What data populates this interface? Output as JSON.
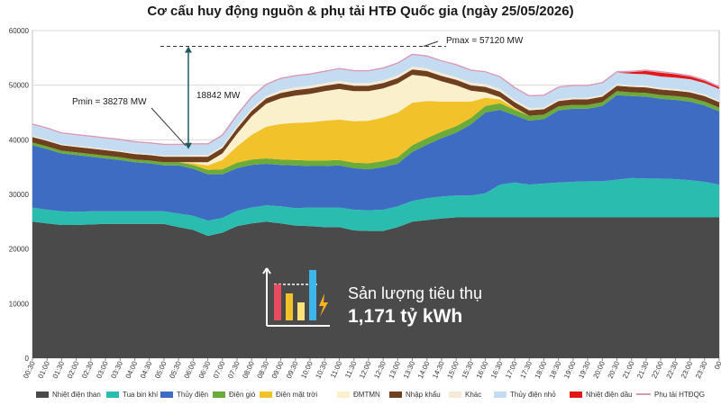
{
  "chart_data": {
    "type": "area",
    "title": "Cơ cấu huy động nguồn & phụ tải HTĐ Quốc gia (ngày 25/05/2026)",
    "ylim": [
      0,
      60000
    ],
    "yticks": [
      "0",
      "10000",
      "20000",
      "30000",
      "40000",
      "50000",
      "60000"
    ],
    "yticks_values": [
      0,
      10000,
      20000,
      30000,
      40000,
      50000,
      60000
    ],
    "x": [
      "00:30",
      "01:00",
      "01:30",
      "02:00",
      "02:30",
      "03:00",
      "03:30",
      "04:00",
      "04:30",
      "05:00",
      "05:30",
      "06:00",
      "06:30",
      "07:00",
      "07:30",
      "08:00",
      "08:30",
      "09:00",
      "09:30",
      "10:00",
      "10:30",
      "11:00",
      "11:30",
      "12:00",
      "12:30",
      "13:00",
      "13:30",
      "14:00",
      "14:30",
      "15:00",
      "15:30",
      "16:00",
      "16:30",
      "17:00",
      "17:30",
      "18:00",
      "18:30",
      "19:00",
      "19:30",
      "20:00",
      "20:30",
      "21:00",
      "21:30",
      "22:00",
      "22:30",
      "23:00",
      "23:30",
      "00"
    ],
    "grid": true,
    "legend_position": "bottom",
    "series": [
      {
        "name": "Nhiệt điện than",
        "color": "#4a4a4a",
        "values": [
          25000,
          24700,
          24400,
          24400,
          24500,
          24600,
          24600,
          24600,
          24600,
          24600,
          24000,
          23500,
          22400,
          23000,
          24200,
          24700,
          25000,
          24700,
          24300,
          24200,
          24000,
          24000,
          23400,
          23300,
          23300,
          24000,
          25000,
          25300,
          25600,
          25800,
          25800,
          25800,
          25800,
          25800,
          25800,
          25800,
          25800,
          25800,
          25800,
          25800,
          25800,
          25800,
          25800,
          25800,
          25800,
          25800,
          25800,
          25800
        ]
      },
      {
        "name": "Tua bin khí",
        "color": "#2bbcb0",
        "values": [
          2600,
          2500,
          2500,
          2400,
          2400,
          2300,
          2300,
          2300,
          2300,
          2300,
          2500,
          2600,
          2800,
          2700,
          2800,
          2900,
          3000,
          3100,
          3200,
          3400,
          3600,
          3600,
          3800,
          3800,
          3900,
          3800,
          3800,
          4000,
          4000,
          4000,
          4000,
          4400,
          6000,
          6400,
          6000,
          6200,
          6400,
          6500,
          6600,
          6600,
          6900,
          7200,
          7100,
          7100,
          7000,
          6800,
          6500,
          6000
        ]
      },
      {
        "name": "Thủy điện",
        "color": "#3e6cc2",
        "values": [
          11400,
          11100,
          10600,
          10400,
          10000,
          9700,
          9400,
          9000,
          8800,
          8400,
          8800,
          8600,
          8500,
          8000,
          7800,
          7800,
          7600,
          7600,
          7800,
          7600,
          7600,
          7700,
          7600,
          7500,
          7800,
          7800,
          9000,
          9800,
          10700,
          11500,
          13000,
          14800,
          13700,
          12300,
          11700,
          11800,
          13200,
          13400,
          13300,
          13800,
          15500,
          15000,
          15000,
          14600,
          14500,
          14400,
          14000,
          13400
        ]
      },
      {
        "name": "Điện gió",
        "color": "#6aab3a",
        "values": [
          500,
          500,
          500,
          500,
          500,
          500,
          500,
          500,
          500,
          600,
          600,
          700,
          800,
          900,
          1000,
          1000,
          1000,
          1000,
          1000,
          1000,
          1000,
          1000,
          1000,
          1100,
          1100,
          1200,
          1200,
          1200,
          1200,
          1200,
          1200,
          1200,
          1200,
          1000,
          900,
          800,
          700,
          700,
          700,
          700,
          700,
          700,
          700,
          700,
          700,
          700,
          700,
          700
        ]
      },
      {
        "name": "Điện mặt trời",
        "color": "#f2c22a",
        "values": [
          0,
          0,
          0,
          0,
          0,
          0,
          0,
          0,
          0,
          0,
          0,
          300,
          800,
          1700,
          3000,
          4500,
          5800,
          6500,
          6800,
          7000,
          7300,
          7400,
          7600,
          7800,
          8000,
          8200,
          7800,
          6800,
          5500,
          4500,
          3000,
          1500,
          700,
          300,
          0,
          0,
          0,
          0,
          0,
          0,
          0,
          0,
          0,
          0,
          0,
          0,
          0,
          0
        ]
      },
      {
        "name": "ĐMTMN",
        "color": "#fbf0cc",
        "values": [
          0,
          0,
          0,
          0,
          0,
          0,
          0,
          0,
          0,
          0,
          0,
          200,
          600,
          1200,
          2300,
          3400,
          4200,
          4700,
          5000,
          5200,
          5400,
          5600,
          5500,
          5400,
          5300,
          5300,
          5100,
          4500,
          3700,
          3000,
          2000,
          1000,
          400,
          100,
          0,
          0,
          0,
          0,
          0,
          0,
          0,
          0,
          0,
          0,
          0,
          0,
          0,
          0
        ]
      },
      {
        "name": "Nhập khẩu",
        "color": "#6e4020",
        "values": [
          1000,
          1000,
          1000,
          1000,
          1000,
          1000,
          1000,
          1000,
          1000,
          1000,
          1000,
          1000,
          1000,
          1000,
          1000,
          1000,
          1000,
          1000,
          1000,
          1000,
          1000,
          1000,
          1000,
          1000,
          1000,
          1000,
          1000,
          1000,
          1000,
          1000,
          1000,
          1000,
          1000,
          1000,
          1000,
          1000,
          1000,
          1000,
          1000,
          1000,
          1000,
          1000,
          1000,
          1000,
          1000,
          1000,
          1000,
          1000
        ]
      },
      {
        "name": "Khác",
        "color": "#f5ead6",
        "values": [
          200,
          200,
          200,
          200,
          200,
          200,
          200,
          200,
          200,
          200,
          200,
          300,
          300,
          300,
          400,
          400,
          400,
          500,
          500,
          500,
          500,
          500,
          500,
          500,
          500,
          500,
          500,
          500,
          500,
          500,
          500,
          500,
          500,
          400,
          400,
          300,
          300,
          300,
          300,
          300,
          300,
          300,
          300,
          300,
          300,
          300,
          300,
          300
        ]
      },
      {
        "name": "Thủy điện nhỏ",
        "color": "#c3dcf2",
        "values": [
          2000,
          2000,
          1900,
          1900,
          1900,
          1900,
          1900,
          1900,
          1900,
          1900,
          1900,
          1900,
          1900,
          1900,
          1900,
          2000,
          2000,
          2000,
          2000,
          2000,
          2000,
          2100,
          2100,
          2100,
          2100,
          2100,
          2100,
          2100,
          2100,
          2100,
          2100,
          2100,
          2100,
          2100,
          2100,
          2100,
          2100,
          2100,
          2100,
          2100,
          2100,
          2100,
          2100,
          2100,
          2100,
          2100,
          2100,
          2100
        ]
      },
      {
        "name": "Nhiệt điện dầu",
        "color": "#e01818",
        "values": [
          0,
          0,
          0,
          0,
          0,
          0,
          0,
          0,
          0,
          0,
          0,
          0,
          0,
          0,
          0,
          0,
          0,
          0,
          0,
          0,
          0,
          0,
          0,
          0,
          0,
          0,
          0,
          0,
          0,
          0,
          0,
          0,
          0,
          0,
          0,
          0,
          0,
          0,
          0,
          0,
          0,
          300,
          600,
          700,
          600,
          500,
          400,
          300
        ]
      }
    ],
    "load_series": {
      "name": "Phụ tải HTĐQG",
      "color": "#d79ab8"
    },
    "annotations": {
      "pmax": "Pmax = 57120 MW",
      "pmin": "Pmin = 38278 MW",
      "delta": "18842 MW"
    }
  },
  "kpi": {
    "label": "Sản lượng tiêu thụ",
    "value": "1,171 tỷ kWh",
    "bar_colors": [
      "#e84a5f",
      "#f2c22a",
      "#ffe27a",
      "#3fb6ea"
    ]
  }
}
